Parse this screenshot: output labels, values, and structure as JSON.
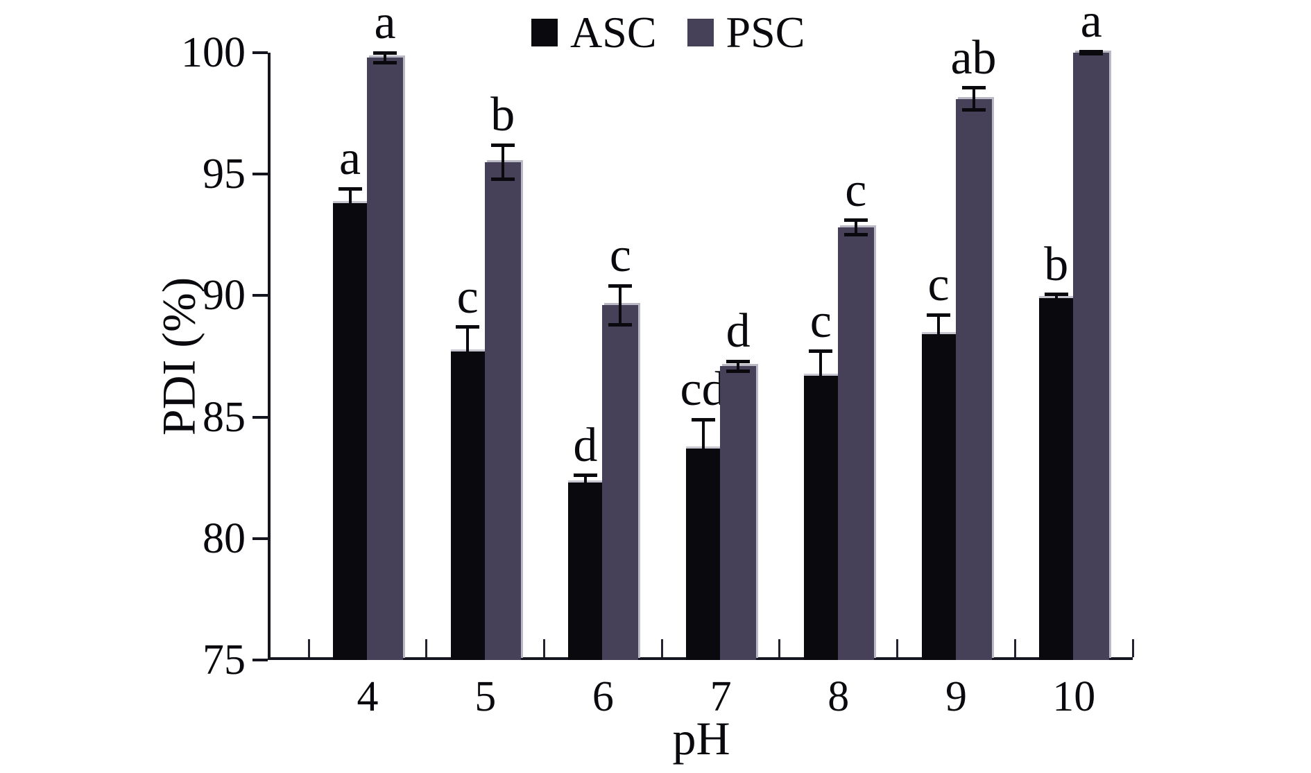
{
  "chart_data": {
    "type": "bar",
    "title": "",
    "categories": [
      "4",
      "5",
      "6",
      "7",
      "8",
      "9",
      "10"
    ],
    "xlabel": "pH",
    "ylabel": "PDI (%)",
    "ylim": [
      75,
      100
    ],
    "yticks": [
      75,
      80,
      85,
      90,
      95,
      100
    ],
    "grid": false,
    "legend_position": "top-center",
    "error_bars": true,
    "series": [
      {
        "name": "ASC",
        "color": "#0a0a0e",
        "values": [
          93.8,
          87.7,
          82.3,
          83.7,
          86.7,
          88.4,
          89.9
        ],
        "errors": [
          0.6,
          1.0,
          0.3,
          1.2,
          1.0,
          0.8,
          0.15
        ],
        "sig_letters": [
          "a",
          "c",
          "d",
          "cd",
          "c",
          "c",
          "b"
        ]
      },
      {
        "name": "PSC",
        "color": "#464158",
        "values": [
          99.8,
          95.5,
          89.6,
          87.1,
          92.8,
          98.1,
          100.0
        ],
        "errors": [
          0.2,
          0.7,
          0.8,
          0.2,
          0.3,
          0.45,
          0.05
        ],
        "sig_letters": [
          "a",
          "b",
          "c",
          "d",
          "c",
          "ab",
          "a"
        ]
      }
    ]
  }
}
